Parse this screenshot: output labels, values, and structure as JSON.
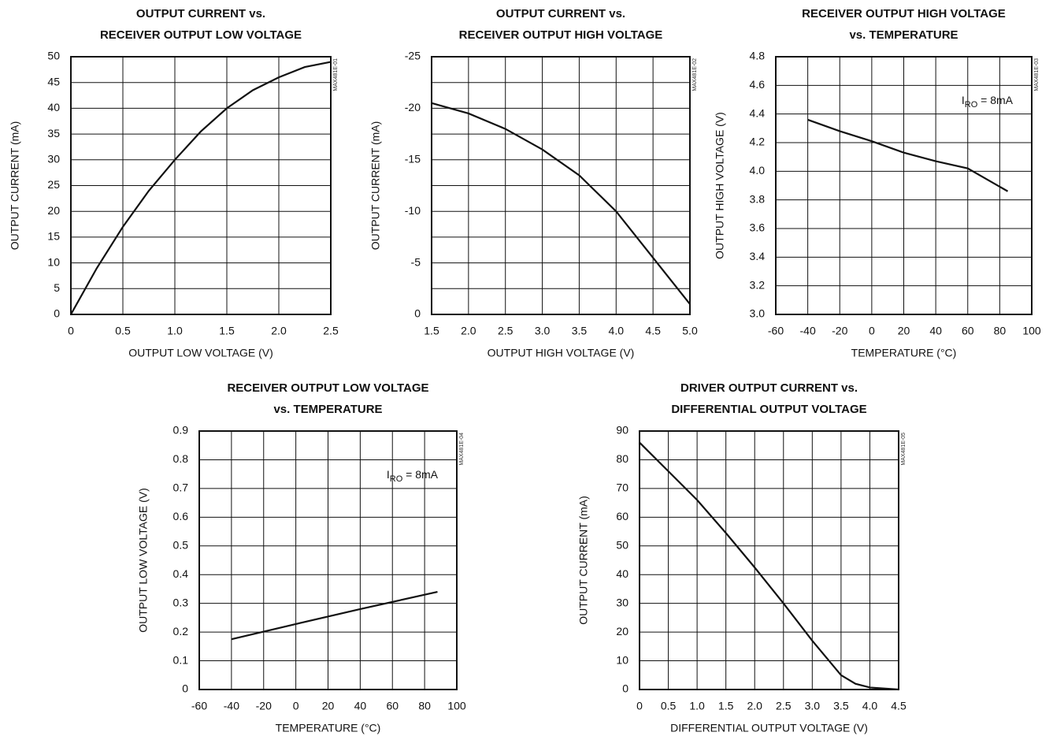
{
  "chart_data": [
    {
      "type": "line",
      "title": [
        "OUTPUT CURRENT vs.",
        "RECEIVER OUTPUT LOW VOLTAGE"
      ],
      "figure_id": "MAX481E-01",
      "x_label": "OUTPUT LOW VOLTAGE (V)",
      "y_label": "OUTPUT CURRENT (mA)",
      "color": "#111111",
      "grid": true,
      "x": [
        0,
        0.25,
        0.5,
        0.75,
        1.0,
        1.25,
        1.5,
        1.75,
        2.0,
        2.25,
        2.5
      ],
      "values": [
        0,
        9,
        17,
        24,
        30,
        35.5,
        40,
        43.5,
        46,
        48,
        49
      ],
      "xlim": [
        0,
        2.5
      ],
      "xticks": [
        0,
        0.5,
        {
          "value": 1,
          "label": "1.0"
        },
        1.5,
        {
          "value": 2,
          "label": "2.0"
        },
        2.5
      ],
      "ylim": [
        0,
        50
      ],
      "yticks": [
        0,
        5,
        10,
        15,
        20,
        25,
        30,
        35,
        40,
        45,
        50
      ]
    },
    {
      "type": "line",
      "title": [
        "OUTPUT CURRENT vs.",
        "RECEIVER OUTPUT HIGH VOLTAGE"
      ],
      "figure_id": "MAX481E-02",
      "x_label": "OUTPUT HIGH VOLTAGE (V)",
      "y_label": "OUTPUT CURRENT (mA)",
      "color": "#111111",
      "grid": true,
      "x": [
        1.5,
        2.0,
        2.5,
        3.0,
        3.5,
        4.0,
        4.5,
        5.0
      ],
      "values": [
        -20.5,
        -19.5,
        -18,
        -16,
        -13.5,
        -10,
        -5.5,
        -1
      ],
      "xlim": [
        1.5,
        5.0
      ],
      "xticks": [
        1.5,
        {
          "value": 2,
          "label": "2.0"
        },
        2.5,
        {
          "value": 3,
          "label": "3.0"
        },
        3.5,
        {
          "value": 4,
          "label": "4.0"
        },
        4.5,
        {
          "value": 5,
          "label": "5.0"
        }
      ],
      "ylim": [
        0,
        -25
      ],
      "yticks": [
        -25,
        -20,
        -15,
        -10,
        -5,
        0
      ],
      "yminor": [
        -22.5,
        -17.5,
        -12.5,
        -7.5,
        -2.5
      ]
    },
    {
      "type": "line",
      "title": [
        "RECEIVER OUTPUT HIGH VOLTAGE",
        "vs. TEMPERATURE"
      ],
      "figure_id": "MAX481E-03",
      "x_label": "TEMPERATURE (°C)",
      "y_label": "OUTPUT HIGH VOLTAGE (V)",
      "color": "#111111",
      "grid": true,
      "annotation": {
        "main": "I",
        "sub": "RO",
        "rest": " = 8mA"
      },
      "x": [
        -40,
        -20,
        0,
        20,
        40,
        60,
        85
      ],
      "values": [
        4.36,
        4.28,
        4.21,
        4.13,
        4.07,
        4.02,
        3.86
      ],
      "xlim": [
        -60,
        100
      ],
      "xticks": [
        -60,
        -40,
        -20,
        0,
        20,
        40,
        60,
        80,
        100
      ],
      "ylim": [
        3.0,
        4.8
      ],
      "yticks": [
        {
          "value": 3,
          "label": "3.0"
        },
        3.2,
        3.4,
        3.6,
        3.8,
        {
          "value": 4,
          "label": "4.0"
        },
        4.2,
        4.4,
        4.6,
        4.8
      ]
    },
    {
      "type": "line",
      "title": [
        "RECEIVER OUTPUT LOW VOLTAGE",
        "vs. TEMPERATURE"
      ],
      "figure_id": "MAX481E-04",
      "x_label": "TEMPERATURE (°C)",
      "y_label": "OUTPUT LOW VOLTAGE (V)",
      "color": "#111111",
      "grid": true,
      "annotation": {
        "main": "I",
        "sub": "RO",
        "rest": " = 8mA"
      },
      "x": [
        -40,
        0,
        40,
        88
      ],
      "values": [
        0.175,
        0.228,
        0.28,
        0.34
      ],
      "xlim": [
        -60,
        100
      ],
      "xticks": [
        -60,
        -40,
        -20,
        0,
        20,
        40,
        60,
        80,
        100
      ],
      "ylim": [
        0,
        0.9
      ],
      "yticks": [
        0,
        0.1,
        0.2,
        0.3,
        0.4,
        0.5,
        0.6,
        0.7,
        0.8,
        0.9
      ]
    },
    {
      "type": "line",
      "title": [
        "DRIVER OUTPUT CURRENT vs.",
        "DIFFERENTIAL OUTPUT VOLTAGE"
      ],
      "figure_id": "MAX481E-05",
      "x_label": "DIFFERENTIAL OUTPUT VOLTAGE (V)",
      "y_label": "OUTPUT CURRENT (mA)",
      "color": "#111111",
      "grid": true,
      "x": [
        0,
        0.5,
        1.0,
        1.5,
        2.0,
        2.5,
        3.0,
        3.5,
        3.75,
        4.0,
        4.5
      ],
      "values": [
        86,
        76,
        66,
        54.5,
        42.5,
        30,
        17,
        5,
        2,
        0.7,
        0
      ],
      "xlim": [
        0,
        4.5
      ],
      "xticks": [
        0,
        0.5,
        {
          "value": 1,
          "label": "1.0"
        },
        1.5,
        {
          "value": 2,
          "label": "2.0"
        },
        2.5,
        {
          "value": 3,
          "label": "3.0"
        },
        3.5,
        {
          "value": 4,
          "label": "4.0"
        },
        4.5
      ],
      "ylim": [
        0,
        90
      ],
      "yticks": [
        0,
        10,
        20,
        30,
        40,
        50,
        60,
        70,
        80,
        90
      ]
    }
  ]
}
